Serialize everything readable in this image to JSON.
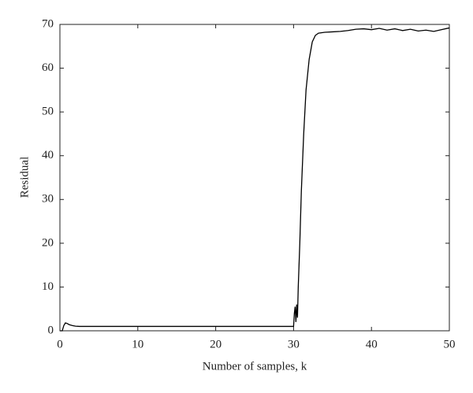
{
  "chart_data": {
    "type": "line",
    "xlabel": "Number of samples, k",
    "ylabel": "Residual",
    "x": [
      0,
      0.3,
      0.5,
      0.7,
      0.9,
      1.2,
      1.6,
      2,
      2.5,
      3,
      5,
      10,
      15,
      20,
      25,
      29.9,
      30.0,
      30.1,
      30.2,
      30.3,
      30.4,
      30.5,
      30.6,
      30.8,
      31,
      31.3,
      31.6,
      32,
      32.4,
      32.8,
      33.2,
      34,
      35,
      36,
      37,
      38,
      39,
      40,
      41,
      42,
      43,
      44,
      45,
      46,
      47,
      48,
      49,
      50
    ],
    "series": [
      {
        "color": "#000000",
        "values": [
          0,
          0,
          1.2,
          1.8,
          1.7,
          1.4,
          1.2,
          1.05,
          1,
          1,
          1,
          1,
          1,
          1,
          1,
          1,
          1,
          4,
          5.5,
          2,
          6,
          3,
          10,
          20,
          32,
          45,
          55,
          62,
          66,
          67.5,
          68,
          68.2,
          68.3,
          68.4,
          68.6,
          68.9,
          69,
          68.8,
          69.1,
          68.7,
          69,
          68.6,
          68.9,
          68.5,
          68.7,
          68.4,
          68.8,
          69.2
        ]
      }
    ],
    "xlim": [
      0,
      50
    ],
    "ylim": [
      0,
      70
    ],
    "xticks": [
      0,
      10,
      20,
      30,
      40,
      50
    ],
    "yticks": [
      0,
      10,
      20,
      30,
      40,
      50,
      60,
      70
    ]
  }
}
